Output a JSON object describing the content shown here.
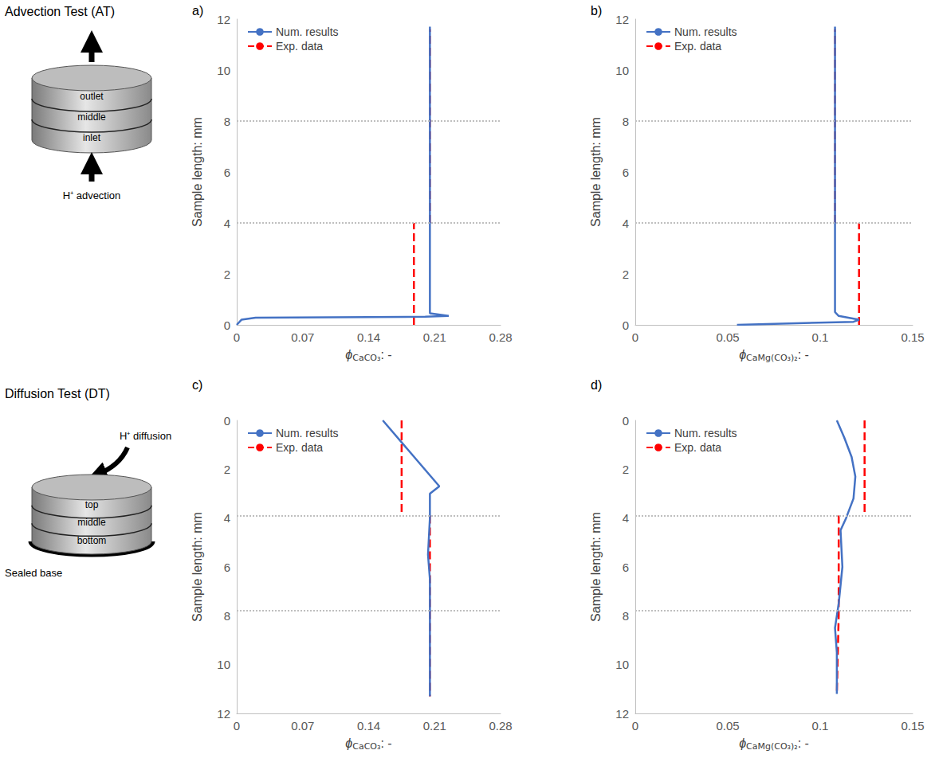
{
  "chart_data": [
    {
      "type": "line",
      "title": "a)",
      "ylabel": "Sample length: mm",
      "xlabel": {
        "symbol": "ϕ",
        "subscript": "CaCO₃",
        "suffix": ": -"
      },
      "xlim": [
        0,
        0.28
      ],
      "xticks": [
        0,
        0.07,
        0.14,
        0.21,
        0.28
      ],
      "ylim": [
        0,
        12
      ],
      "yticks": [
        0,
        2,
        4,
        6,
        8,
        10,
        12
      ],
      "grid": false,
      "legend": "upper left",
      "section_boundaries": [
        4,
        8
      ],
      "series": [
        {
          "name": "Num. results",
          "color": "#4472c4",
          "line_style": "solid",
          "marker": "none",
          "points": [
            [
              0,
              0
            ],
            [
              0.005,
              0.2
            ],
            [
              0.02,
              0.28
            ],
            [
              0.1,
              0.3
            ],
            [
              0.2,
              0.32
            ],
            [
              0.225,
              0.35
            ],
            [
              0.205,
              0.45
            ],
            [
              0.205,
              11.7
            ]
          ]
        },
        {
          "name": "Exp. data",
          "color": "#ff0000",
          "line_style": "dashed",
          "marker": "none",
          "points": [
            [
              0.188,
              0
            ],
            [
              0.188,
              4
            ],
            null,
            [
              0.205,
              4
            ],
            [
              0.205,
              11.6
            ]
          ]
        }
      ]
    },
    {
      "type": "line",
      "title": "b)",
      "ylabel": "Sample length: mm",
      "xlabel": {
        "symbol": "ϕ",
        "subscript": "CaMg(CO₃)₂",
        "suffix": ": -"
      },
      "xlim": [
        0,
        0.15
      ],
      "xticks": [
        0,
        0.05,
        0.1,
        0.15
      ],
      "ylim": [
        0,
        12
      ],
      "yticks": [
        0,
        2,
        4,
        6,
        8,
        10,
        12
      ],
      "grid": false,
      "legend": "upper left",
      "section_boundaries": [
        4,
        8
      ],
      "series": [
        {
          "name": "Num. results",
          "color": "#4472c4",
          "line_style": "solid",
          "marker": "none",
          "points": [
            [
              0.055,
              0
            ],
            [
              0.118,
              0.12
            ],
            [
              0.121,
              0.2
            ],
            [
              0.11,
              0.35
            ],
            [
              0.108,
              0.5
            ],
            [
              0.108,
              11.7
            ]
          ]
        },
        {
          "name": "Exp. data",
          "color": "#ff0000",
          "line_style": "dashed",
          "marker": "none",
          "points": [
            [
              0.121,
              0
            ],
            [
              0.121,
              4
            ],
            null,
            [
              0.108,
              4
            ],
            [
              0.108,
              11.6
            ]
          ]
        }
      ]
    },
    {
      "type": "line",
      "title": "c)",
      "ylabel": "Sample length: mm",
      "xlabel": {
        "symbol": "ϕ",
        "subscript": "CaCO₃",
        "suffix": ": -"
      },
      "xlim": [
        0,
        0.28
      ],
      "xticks": [
        0,
        0.07,
        0.14,
        0.21,
        0.28
      ],
      "ylim": [
        12,
        0
      ],
      "yticks": [
        0,
        2,
        4,
        6,
        8,
        10,
        12
      ],
      "grid": false,
      "legend": "upper left",
      "section_boundaries": [
        3.9,
        7.8
      ],
      "series": [
        {
          "name": "Num. results",
          "color": "#4472c4",
          "line_style": "solid",
          "marker": "none",
          "points": [
            [
              0.155,
              0
            ],
            [
              0.215,
              2.7
            ],
            [
              0.205,
              3.0
            ],
            [
              0.205,
              4
            ],
            [
              0.203,
              5.5
            ],
            [
              0.205,
              6.5
            ],
            [
              0.205,
              11.3
            ]
          ]
        },
        {
          "name": "Exp. data",
          "color": "#ff0000",
          "line_style": "dashed",
          "marker": "none",
          "points": [
            [
              0.175,
              0
            ],
            [
              0.175,
              3.9
            ],
            null,
            [
              0.205,
              3.9
            ],
            [
              0.205,
              11.3
            ]
          ]
        }
      ]
    },
    {
      "type": "line",
      "title": "d)",
      "ylabel": "Sample length: mm",
      "xlabel": {
        "symbol": "ϕ",
        "subscript": "CaMg(CO₃)₂",
        "suffix": ": -"
      },
      "xlim": [
        0,
        0.15
      ],
      "xticks": [
        0,
        0.05,
        0.1,
        0.15
      ],
      "ylim": [
        12,
        0
      ],
      "yticks": [
        0,
        2,
        4,
        6,
        8,
        10,
        12
      ],
      "grid": false,
      "legend": "upper left",
      "section_boundaries": [
        3.9,
        7.8
      ],
      "series": [
        {
          "name": "Num. results",
          "color": "#4472c4",
          "line_style": "solid",
          "marker": "none",
          "points": [
            [
              0.109,
              0
            ],
            [
              0.113,
              0.7
            ],
            [
              0.117,
              1.5
            ],
            [
              0.119,
              2.3
            ],
            [
              0.118,
              3.2
            ],
            [
              0.114,
              4
            ],
            [
              0.111,
              4.5
            ],
            [
              0.112,
              6
            ],
            [
              0.11,
              7.5
            ],
            [
              0.108,
              8.5
            ],
            [
              0.109,
              9.5
            ],
            [
              0.109,
              11.2
            ]
          ]
        },
        {
          "name": "Exp. data",
          "color": "#ff0000",
          "line_style": "dashed",
          "marker": "none",
          "points": [
            [
              0.124,
              0
            ],
            [
              0.124,
              3.9
            ],
            null,
            [
              0.11,
              3.9
            ],
            [
              0.11,
              8
            ],
            [
              0.109,
              11.2
            ]
          ]
        }
      ]
    }
  ],
  "diagrams": [
    {
      "title": "Advection Test (AT)",
      "layers": [
        "outlet",
        "middle",
        "inlet"
      ],
      "arrow_label": "H⁺ advection"
    },
    {
      "title": "Diffusion Test (DT)",
      "layers": [
        "top",
        "middle",
        "bottom"
      ],
      "arrow_label": "H⁺ diffusion",
      "base_label": "Sealed base"
    }
  ]
}
